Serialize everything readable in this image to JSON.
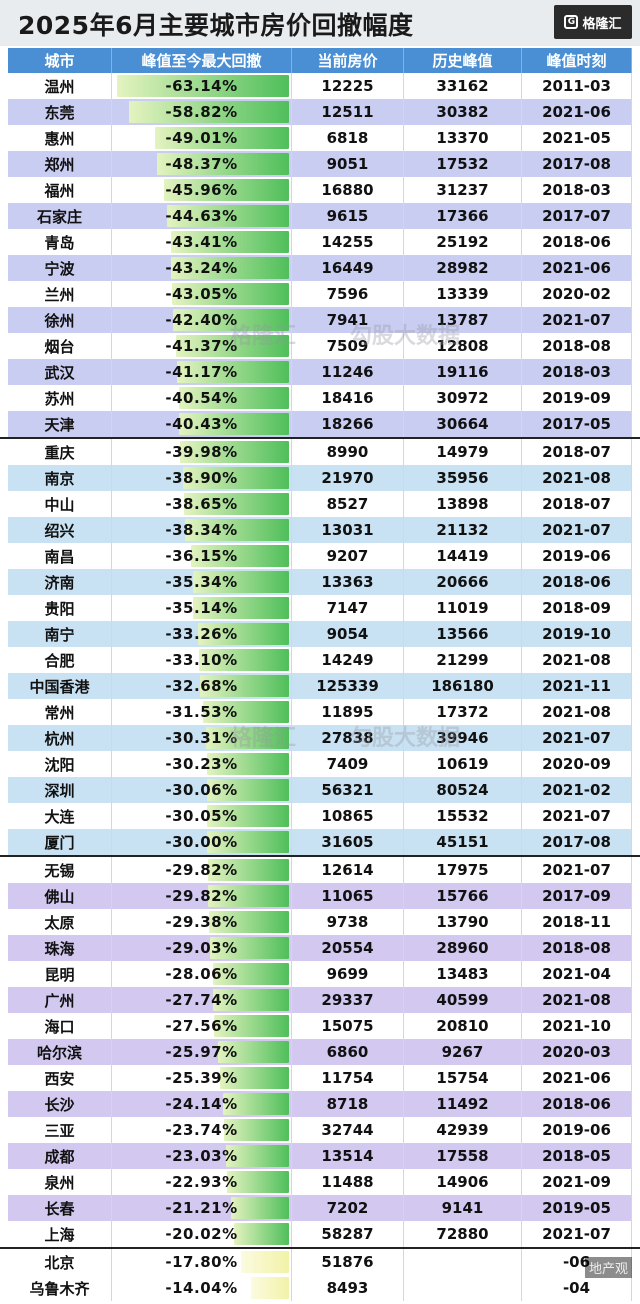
{
  "title": "2025年6月主要城市房价回撤幅度",
  "logo": "格隆汇",
  "watermark": [
    "格隆汇",
    "勾股大数据"
  ],
  "corner_mark": "地产观",
  "headers": [
    "城市",
    "峰值至今最大回撤",
    "当前房价",
    "历史峰值",
    "峰值时刻"
  ],
  "rows": [
    {
      "city": "温州",
      "drawdown": "-63.14%",
      "current": "12225",
      "peak": "33162",
      "time": "2011-03"
    },
    {
      "city": "东莞",
      "drawdown": "-58.82%",
      "current": "12511",
      "peak": "30382",
      "time": "2021-06"
    },
    {
      "city": "惠州",
      "drawdown": "-49.01%",
      "current": "6818",
      "peak": "13370",
      "time": "2021-05"
    },
    {
      "city": "郑州",
      "drawdown": "-48.37%",
      "current": "9051",
      "peak": "17532",
      "time": "2017-08"
    },
    {
      "city": "福州",
      "drawdown": "-45.96%",
      "current": "16880",
      "peak": "31237",
      "time": "2018-03"
    },
    {
      "city": "石家庄",
      "drawdown": "-44.63%",
      "current": "9615",
      "peak": "17366",
      "time": "2017-07"
    },
    {
      "city": "青岛",
      "drawdown": "-43.41%",
      "current": "14255",
      "peak": "25192",
      "time": "2018-06"
    },
    {
      "city": "宁波",
      "drawdown": "-43.24%",
      "current": "16449",
      "peak": "28982",
      "time": "2021-06"
    },
    {
      "city": "兰州",
      "drawdown": "-43.05%",
      "current": "7596",
      "peak": "13339",
      "time": "2020-02"
    },
    {
      "city": "徐州",
      "drawdown": "-42.40%",
      "current": "7941",
      "peak": "13787",
      "time": "2021-07"
    },
    {
      "city": "烟台",
      "drawdown": "-41.37%",
      "current": "7509",
      "peak": "12808",
      "time": "2018-08"
    },
    {
      "city": "武汉",
      "drawdown": "-41.17%",
      "current": "11246",
      "peak": "19116",
      "time": "2018-03"
    },
    {
      "city": "苏州",
      "drawdown": "-40.54%",
      "current": "18416",
      "peak": "30972",
      "time": "2019-09"
    },
    {
      "city": "天津",
      "drawdown": "-40.43%",
      "current": "18266",
      "peak": "30664",
      "time": "2017-05"
    },
    {
      "city": "重庆",
      "drawdown": "-39.98%",
      "current": "8990",
      "peak": "14979",
      "time": "2018-07"
    },
    {
      "city": "南京",
      "drawdown": "-38.90%",
      "current": "21970",
      "peak": "35956",
      "time": "2021-08"
    },
    {
      "city": "中山",
      "drawdown": "-38.65%",
      "current": "8527",
      "peak": "13898",
      "time": "2018-07"
    },
    {
      "city": "绍兴",
      "drawdown": "-38.34%",
      "current": "13031",
      "peak": "21132",
      "time": "2021-07"
    },
    {
      "city": "南昌",
      "drawdown": "-36.15%",
      "current": "9207",
      "peak": "14419",
      "time": "2019-06"
    },
    {
      "city": "济南",
      "drawdown": "-35.34%",
      "current": "13363",
      "peak": "20666",
      "time": "2018-06"
    },
    {
      "city": "贵阳",
      "drawdown": "-35.14%",
      "current": "7147",
      "peak": "11019",
      "time": "2018-09"
    },
    {
      "city": "南宁",
      "drawdown": "-33.26%",
      "current": "9054",
      "peak": "13566",
      "time": "2019-10"
    },
    {
      "city": "合肥",
      "drawdown": "-33.10%",
      "current": "14249",
      "peak": "21299",
      "time": "2021-08"
    },
    {
      "city": "中国香港",
      "drawdown": "-32.68%",
      "current": "125339",
      "peak": "186180",
      "time": "2021-11"
    },
    {
      "city": "常州",
      "drawdown": "-31.53%",
      "current": "11895",
      "peak": "17372",
      "time": "2021-08"
    },
    {
      "city": "杭州",
      "drawdown": "-30.31%",
      "current": "27838",
      "peak": "39946",
      "time": "2021-07"
    },
    {
      "city": "沈阳",
      "drawdown": "-30.23%",
      "current": "7409",
      "peak": "10619",
      "time": "2020-09"
    },
    {
      "city": "深圳",
      "drawdown": "-30.06%",
      "current": "56321",
      "peak": "80524",
      "time": "2021-02"
    },
    {
      "city": "大连",
      "drawdown": "-30.05%",
      "current": "10865",
      "peak": "15532",
      "time": "2021-07"
    },
    {
      "city": "厦门",
      "drawdown": "-30.00%",
      "current": "31605",
      "peak": "45151",
      "time": "2017-08"
    },
    {
      "city": "无锡",
      "drawdown": "-29.82%",
      "current": "12614",
      "peak": "17975",
      "time": "2021-07"
    },
    {
      "city": "佛山",
      "drawdown": "-29.82%",
      "current": "11065",
      "peak": "15766",
      "time": "2017-09"
    },
    {
      "city": "太原",
      "drawdown": "-29.38%",
      "current": "9738",
      "peak": "13790",
      "time": "2018-11"
    },
    {
      "city": "珠海",
      "drawdown": "-29.03%",
      "current": "20554",
      "peak": "28960",
      "time": "2018-08"
    },
    {
      "city": "昆明",
      "drawdown": "-28.06%",
      "current": "9699",
      "peak": "13483",
      "time": "2021-04"
    },
    {
      "city": "广州",
      "drawdown": "-27.74%",
      "current": "29337",
      "peak": "40599",
      "time": "2021-08"
    },
    {
      "city": "海口",
      "drawdown": "-27.56%",
      "current": "15075",
      "peak": "20810",
      "time": "2021-10"
    },
    {
      "city": "哈尔滨",
      "drawdown": "-25.97%",
      "current": "6860",
      "peak": "9267",
      "time": "2020-03"
    },
    {
      "city": "西安",
      "drawdown": "-25.39%",
      "current": "11754",
      "peak": "15754",
      "time": "2021-06"
    },
    {
      "city": "长沙",
      "drawdown": "-24.14%",
      "current": "8718",
      "peak": "11492",
      "time": "2018-06"
    },
    {
      "city": "三亚",
      "drawdown": "-23.74%",
      "current": "32744",
      "peak": "42939",
      "time": "2019-06"
    },
    {
      "city": "成都",
      "drawdown": "-23.03%",
      "current": "13514",
      "peak": "17558",
      "time": "2018-05"
    },
    {
      "city": "泉州",
      "drawdown": "-22.93%",
      "current": "11488",
      "peak": "14906",
      "time": "2021-09"
    },
    {
      "city": "长春",
      "drawdown": "-21.21%",
      "current": "7202",
      "peak": "9141",
      "time": "2019-05"
    },
    {
      "city": "上海",
      "drawdown": "-20.02%",
      "current": "58287",
      "peak": "72880",
      "time": "2021-07"
    },
    {
      "city": "北京",
      "drawdown": "-17.80%",
      "current": "51876",
      "peak": "",
      "time": "-06"
    },
    {
      "city": "乌鲁木齐",
      "drawdown": "-14.04%",
      "current": "8493",
      "peak": "",
      "time": "-04"
    }
  ],
  "group_breaks": [
    14,
    30,
    45
  ],
  "colors": {
    "header": "#4a8fd4",
    "bar_green": "#4fbf5a",
    "bar_light": "#e4f3c0",
    "bar_yellow": "#f2f2a8"
  }
}
